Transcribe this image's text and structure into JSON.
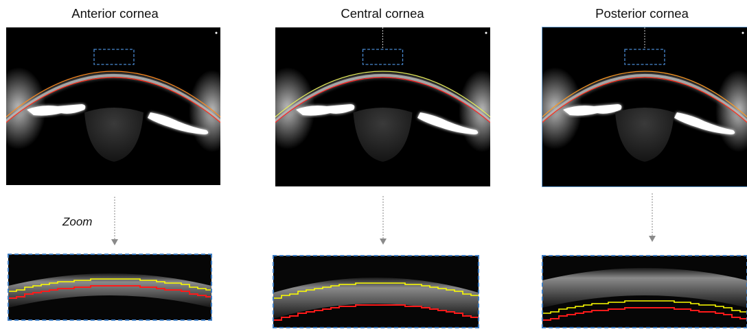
{
  "panels": [
    {
      "title": "Anterior cornea",
      "colors": {
        "outer": "#ff8a1e",
        "inner": "#ff2d1a"
      }
    },
    {
      "title": "Central cornea",
      "colors": {
        "outer": "#e9f05a",
        "inner": "#ff2222"
      }
    },
    {
      "title": "Posterior cornea",
      "colors": {
        "outer": "#ff9a22",
        "inner": "#ff2d1a"
      }
    }
  ],
  "zoom_label": "Zoom",
  "colors": {
    "roi_box": "#4a8bd4",
    "arrow": "#9a9a9a",
    "segment_yellow": "#ffff00",
    "segment_red": "#ff1a1a"
  }
}
